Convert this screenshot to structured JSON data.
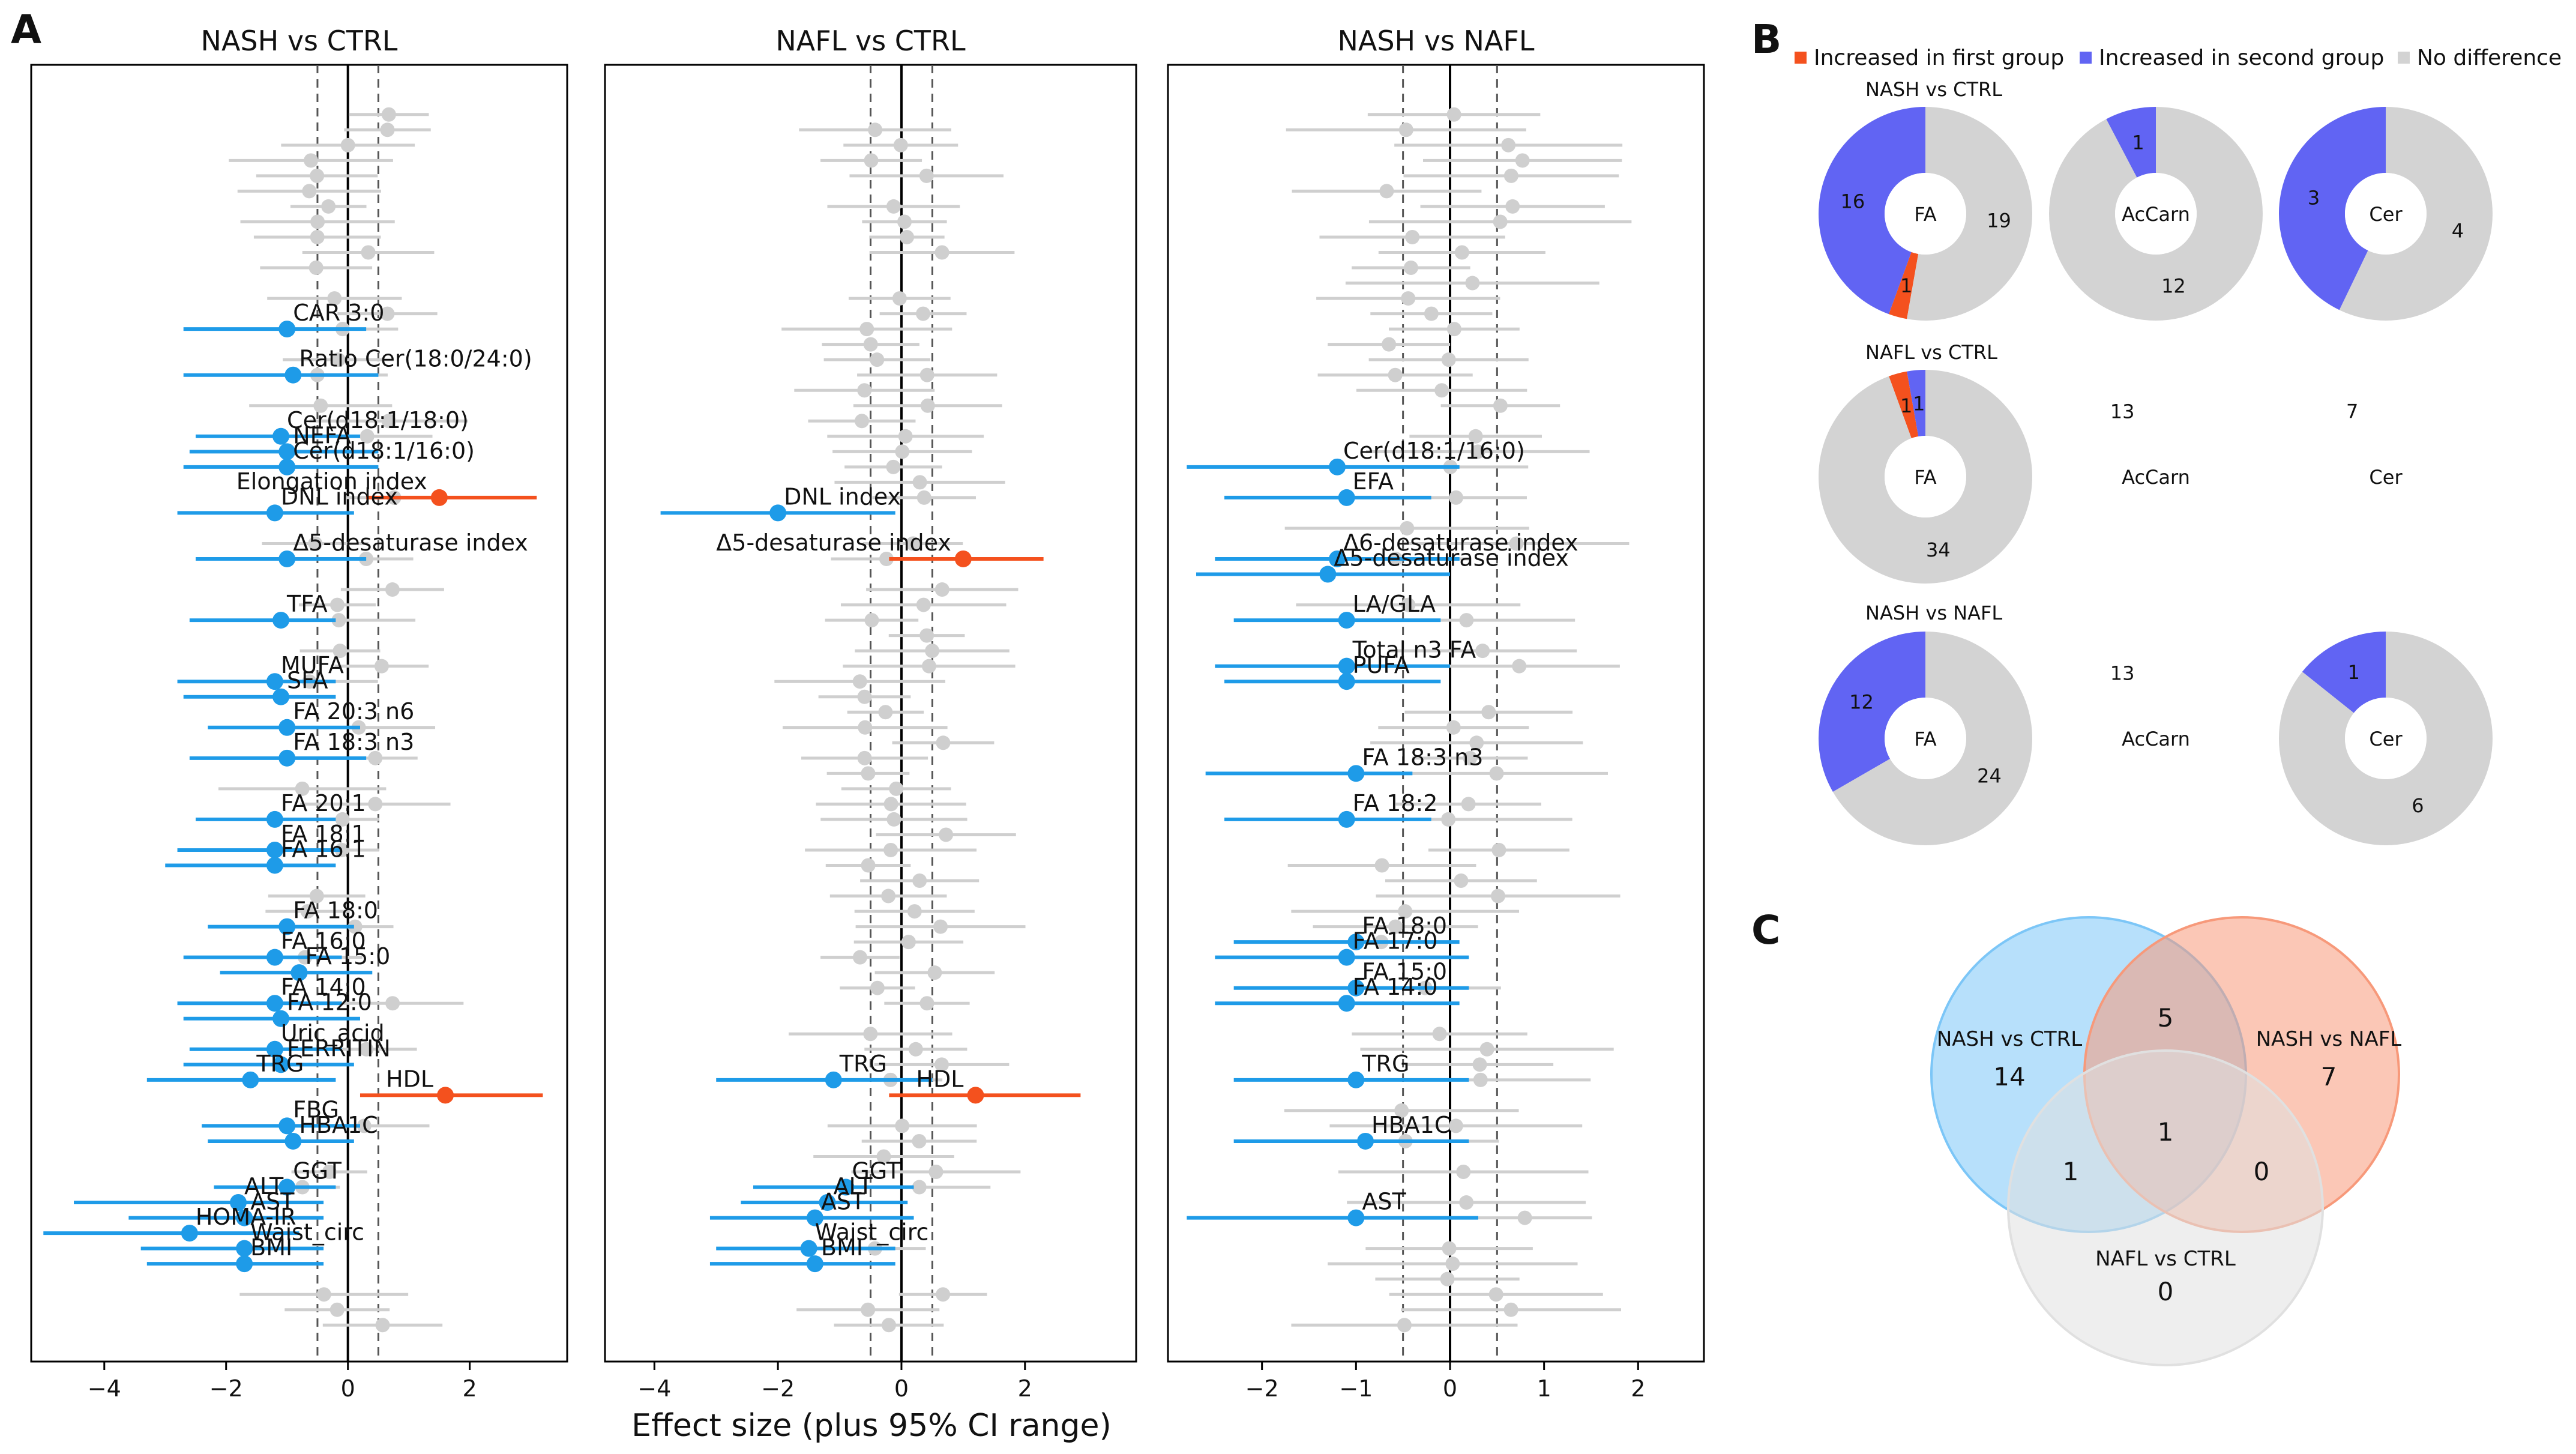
{
  "panel_labels": {
    "a": "A",
    "b": "B",
    "c": "C"
  },
  "x_axis_label": "Effect size (plus 95% CI range)",
  "colors": {
    "increased_first": "#f4511e",
    "increased_second": "#1e9be8",
    "no_difference": "#cfcfcf",
    "donut_blue": "#6164f3",
    "donut_gray": "#d3d3d3",
    "donut_red": "#f4511e",
    "venn_blue": "#7cc6f7",
    "venn_orange": "#f7997a",
    "venn_gray": "#e0e0e0"
  },
  "chart_data": [
    {
      "type": "scatter",
      "subtype": "forest",
      "title": "NASH vs CTRL",
      "xlim": [
        -5.2,
        3.6
      ],
      "xticks": [
        -4,
        -2,
        0,
        2
      ],
      "xtick_labels": [
        "−4",
        "−2",
        "0",
        "2"
      ],
      "n_rows": 80,
      "reference_lines": {
        "solid": 0,
        "dashed": [
          -0.5,
          0.5
        ]
      },
      "significant": [
        {
          "label": "CAR 3:0",
          "row": 14.5,
          "est": -1.0,
          "lo": -2.7,
          "hi": 0.3,
          "dir": "second"
        },
        {
          "label": "Ratio Cer(18:0/24:0)",
          "row": 17.5,
          "est": -0.9,
          "lo": -2.7,
          "hi": 0.5,
          "dir": "second"
        },
        {
          "label": "Cer(d18:1/18:0)",
          "row": 21.5,
          "est": -1.1,
          "lo": -2.5,
          "hi": 0.2,
          "dir": "second"
        },
        {
          "label": "NEFA",
          "row": 22.5,
          "est": -1.0,
          "lo": -2.6,
          "hi": 0.5,
          "dir": "second"
        },
        {
          "label": "Cer(d18:1/16:0)",
          "row": 23.5,
          "est": -1.0,
          "lo": -2.7,
          "hi": 0.5,
          "dir": "second"
        },
        {
          "label": "Elongation index",
          "row": 25.5,
          "est": 1.5,
          "lo": 0.3,
          "hi": 3.1,
          "dir": "first"
        },
        {
          "label": "DNL index",
          "row": 26.5,
          "est": -1.2,
          "lo": -2.8,
          "hi": 0.1,
          "dir": "second"
        },
        {
          "label": "Δ5-desaturase index",
          "row": 29.5,
          "est": -1.0,
          "lo": -2.5,
          "hi": 0.3,
          "dir": "second"
        },
        {
          "label": "TFA",
          "row": 33.5,
          "est": -1.1,
          "lo": -2.6,
          "hi": -0.2,
          "dir": "second"
        },
        {
          "label": "MUFA",
          "row": 37.5,
          "est": -1.2,
          "lo": -2.8,
          "hi": -0.2,
          "dir": "second"
        },
        {
          "label": "SFA",
          "row": 38.5,
          "est": -1.1,
          "lo": -2.7,
          "hi": -0.2,
          "dir": "second"
        },
        {
          "label": "FA 20:3 n6",
          "row": 40.5,
          "est": -1.0,
          "lo": -2.3,
          "hi": 0.2,
          "dir": "second"
        },
        {
          "label": "FA 18:3 n3",
          "row": 42.5,
          "est": -1.0,
          "lo": -2.6,
          "hi": 0.3,
          "dir": "second"
        },
        {
          "label": "FA 20:1",
          "row": 46.5,
          "est": -1.2,
          "lo": -2.5,
          "hi": -0.2,
          "dir": "second"
        },
        {
          "label": "FA 18:1",
          "row": 48.5,
          "est": -1.2,
          "lo": -2.8,
          "hi": -0.1,
          "dir": "second"
        },
        {
          "label": "FA 16:1",
          "row": 49.5,
          "est": -1.2,
          "lo": -3.0,
          "hi": -0.2,
          "dir": "second"
        },
        {
          "label": "FA 18:0",
          "row": 53.5,
          "est": -1.0,
          "lo": -2.3,
          "hi": 0.1,
          "dir": "second"
        },
        {
          "label": "FA 16:0",
          "row": 55.5,
          "est": -1.2,
          "lo": -2.7,
          "hi": -0.1,
          "dir": "second"
        },
        {
          "label": "FA 15:0",
          "row": 56.5,
          "est": -0.8,
          "lo": -2.1,
          "hi": 0.4,
          "dir": "second"
        },
        {
          "label": "FA 14:0",
          "row": 58.5,
          "est": -1.2,
          "lo": -2.8,
          "hi": -0.1,
          "dir": "second"
        },
        {
          "label": "FA 12:0",
          "row": 59.5,
          "est": -1.1,
          "lo": -2.7,
          "hi": 0.2,
          "dir": "second"
        },
        {
          "label": "Uric_acid",
          "row": 61.5,
          "est": -1.2,
          "lo": -2.6,
          "hi": -0.1,
          "dir": "second"
        },
        {
          "label": "FERRITIN",
          "row": 62.5,
          "est": -1.1,
          "lo": -2.7,
          "hi": 0.1,
          "dir": "second"
        },
        {
          "label": "TRG",
          "row": 63.5,
          "est": -1.6,
          "lo": -3.3,
          "hi": -0.2,
          "dir": "second"
        },
        {
          "label": "HDL",
          "row": 64.5,
          "est": 1.6,
          "lo": 0.2,
          "hi": 3.2,
          "dir": "first"
        },
        {
          "label": "FBG",
          "row": 66.5,
          "est": -1.0,
          "lo": -2.4,
          "hi": 0.2,
          "dir": "second"
        },
        {
          "label": "HBA1C",
          "row": 67.5,
          "est": -0.9,
          "lo": -2.3,
          "hi": 0.1,
          "dir": "second"
        },
        {
          "label": "GGT",
          "row": 70.5,
          "est": -1.0,
          "lo": -2.2,
          "hi": -0.2,
          "dir": "second"
        },
        {
          "label": "ALT",
          "row": 71.5,
          "est": -1.8,
          "lo": -4.5,
          "hi": -0.4,
          "dir": "second"
        },
        {
          "label": "AST",
          "row": 72.5,
          "est": -1.7,
          "lo": -3.6,
          "hi": -0.4,
          "dir": "second"
        },
        {
          "label": "HOMA-IR",
          "row": 73.5,
          "est": -2.6,
          "lo": -5.0,
          "hi": -0.8,
          "dir": "second"
        },
        {
          "label": "Waist_circ",
          "row": 74.5,
          "est": -1.7,
          "lo": -3.4,
          "hi": -0.4,
          "dir": "second"
        },
        {
          "label": "BMI",
          "row": 75.5,
          "est": -1.7,
          "lo": -3.3,
          "hi": -0.4,
          "dir": "second"
        }
      ]
    },
    {
      "type": "scatter",
      "subtype": "forest",
      "title": "NAFL vs CTRL",
      "xlim": [
        -4.8,
        3.8
      ],
      "xticks": [
        -4,
        -2,
        0,
        2
      ],
      "xtick_labels": [
        "−4",
        "−2",
        "0",
        "2"
      ],
      "n_rows": 80,
      "reference_lines": {
        "solid": 0,
        "dashed": [
          -0.5,
          0.5
        ]
      },
      "significant": [
        {
          "label": "DNL index",
          "row": 26.5,
          "est": -2.0,
          "lo": -3.9,
          "hi": -0.1,
          "dir": "second"
        },
        {
          "label": "Δ5-desaturase index",
          "row": 29.5,
          "est": 1.0,
          "lo": -0.2,
          "hi": 2.3,
          "dir": "first"
        },
        {
          "label": "TRG",
          "row": 63.5,
          "est": -1.1,
          "lo": -3.0,
          "hi": 0.5,
          "dir": "second"
        },
        {
          "label": "HDL",
          "row": 64.5,
          "est": 1.2,
          "lo": -0.2,
          "hi": 2.9,
          "dir": "first"
        },
        {
          "label": "GGT",
          "row": 70.5,
          "est": -0.9,
          "lo": -2.4,
          "hi": 0.2,
          "dir": "second"
        },
        {
          "label": "ALT",
          "row": 71.5,
          "est": -1.2,
          "lo": -2.6,
          "hi": 0.1,
          "dir": "second"
        },
        {
          "label": "AST",
          "row": 72.5,
          "est": -1.4,
          "lo": -3.1,
          "hi": 0.2,
          "dir": "second"
        },
        {
          "label": "Waist_circ",
          "row": 74.5,
          "est": -1.5,
          "lo": -3.0,
          "hi": -0.1,
          "dir": "second"
        },
        {
          "label": "BMI",
          "row": 75.5,
          "est": -1.4,
          "lo": -3.1,
          "hi": -0.1,
          "dir": "second"
        }
      ]
    },
    {
      "type": "scatter",
      "subtype": "forest",
      "title": "NASH vs NAFL",
      "xlim": [
        -3.0,
        2.7
      ],
      "xticks": [
        -2,
        -1,
        0,
        1,
        2
      ],
      "xtick_labels": [
        "−2",
        "−1",
        "0",
        "1",
        "2"
      ],
      "n_rows": 80,
      "reference_lines": {
        "solid": 0,
        "dashed": [
          -0.5,
          0.5
        ]
      },
      "significant": [
        {
          "label": "Cer(d18:1/16:0)",
          "row": 23.5,
          "est": -1.2,
          "lo": -2.8,
          "hi": 0.1,
          "dir": "second"
        },
        {
          "label": "EFA",
          "row": 25.5,
          "est": -1.1,
          "lo": -2.4,
          "hi": -0.2,
          "dir": "second"
        },
        {
          "label": "Δ6-desaturase index",
          "row": 29.5,
          "est": -1.2,
          "lo": -2.5,
          "hi": 0.1,
          "dir": "second"
        },
        {
          "label": "Δ5-desaturase index",
          "row": 30.5,
          "est": -1.3,
          "lo": -2.7,
          "hi": 0.0,
          "dir": "second"
        },
        {
          "label": "LA/GLA",
          "row": 33.5,
          "est": -1.1,
          "lo": -2.3,
          "hi": -0.1,
          "dir": "second"
        },
        {
          "label": "Total n3 FA",
          "row": 36.5,
          "est": -1.1,
          "lo": -2.5,
          "hi": 0.0,
          "dir": "second"
        },
        {
          "label": "PUFA",
          "row": 37.5,
          "est": -1.1,
          "lo": -2.4,
          "hi": -0.1,
          "dir": "second"
        },
        {
          "label": "FA 18:3 n3",
          "row": 43.5,
          "est": -1.0,
          "lo": -2.6,
          "hi": -0.4,
          "dir": "second"
        },
        {
          "label": "FA 18:2",
          "row": 46.5,
          "est": -1.1,
          "lo": -2.4,
          "hi": -0.2,
          "dir": "second"
        },
        {
          "label": "FA 18:0",
          "row": 54.5,
          "est": -1.0,
          "lo": -2.3,
          "hi": 0.1,
          "dir": "second"
        },
        {
          "label": "FA 17:0",
          "row": 55.5,
          "est": -1.1,
          "lo": -2.5,
          "hi": 0.2,
          "dir": "second"
        },
        {
          "label": "FA 15:0",
          "row": 57.5,
          "est": -1.0,
          "lo": -2.3,
          "hi": 0.2,
          "dir": "second"
        },
        {
          "label": "FA 14:0",
          "row": 58.5,
          "est": -1.1,
          "lo": -2.5,
          "hi": 0.1,
          "dir": "second"
        },
        {
          "label": "TRG",
          "row": 63.5,
          "est": -1.0,
          "lo": -2.3,
          "hi": 0.2,
          "dir": "second"
        },
        {
          "label": "HBA1C",
          "row": 67.5,
          "est": -0.9,
          "lo": -2.3,
          "hi": 0.2,
          "dir": "second"
        },
        {
          "label": "AST",
          "row": 72.5,
          "est": -1.0,
          "lo": -2.8,
          "hi": 0.3,
          "dir": "second"
        }
      ]
    },
    {
      "type": "pie",
      "subtype": "donut-grid",
      "legend": [
        {
          "name": "Increased in first group",
          "color": "#f4511e"
        },
        {
          "name": "Increased in second group",
          "color": "#6164f3"
        },
        {
          "name": "No difference",
          "color": "#d3d3d3"
        }
      ],
      "rows": [
        {
          "title": "NASH vs CTRL",
          "donuts": [
            {
              "center": "FA",
              "first": 1,
              "second": 16,
              "none": 19
            },
            {
              "center": "AcCarn",
              "first": 0,
              "second": 1,
              "none": 12
            },
            {
              "center": "Cer",
              "first": 0,
              "second": 3,
              "none": 4
            }
          ]
        },
        {
          "title": "NAFL vs CTRL",
          "donuts": [
            {
              "center": "FA",
              "first": 1,
              "second": 1,
              "none": 34
            },
            {
              "center": "AcCarn",
              "first": 0,
              "second": 0,
              "none": 13
            },
            {
              "center": "Cer",
              "first": 0,
              "second": 0,
              "none": 7
            }
          ]
        },
        {
          "title": "NASH vs NAFL",
          "donuts": [
            {
              "center": "FA",
              "first": 0,
              "second": 12,
              "none": 24
            },
            {
              "center": "AcCarn",
              "first": 0,
              "second": 0,
              "none": 13
            },
            {
              "center": "Cer",
              "first": 0,
              "second": 1,
              "none": 6
            }
          ]
        }
      ]
    },
    {
      "type": "venn",
      "sets": [
        "NASH vs CTRL",
        "NASH vs NAFL",
        "NAFL vs CTRL"
      ],
      "regions": {
        "a_only": 14,
        "b_only": 7,
        "c_only": 0,
        "ab": 5,
        "ac": 1,
        "bc": 0,
        "abc": 1
      }
    }
  ]
}
